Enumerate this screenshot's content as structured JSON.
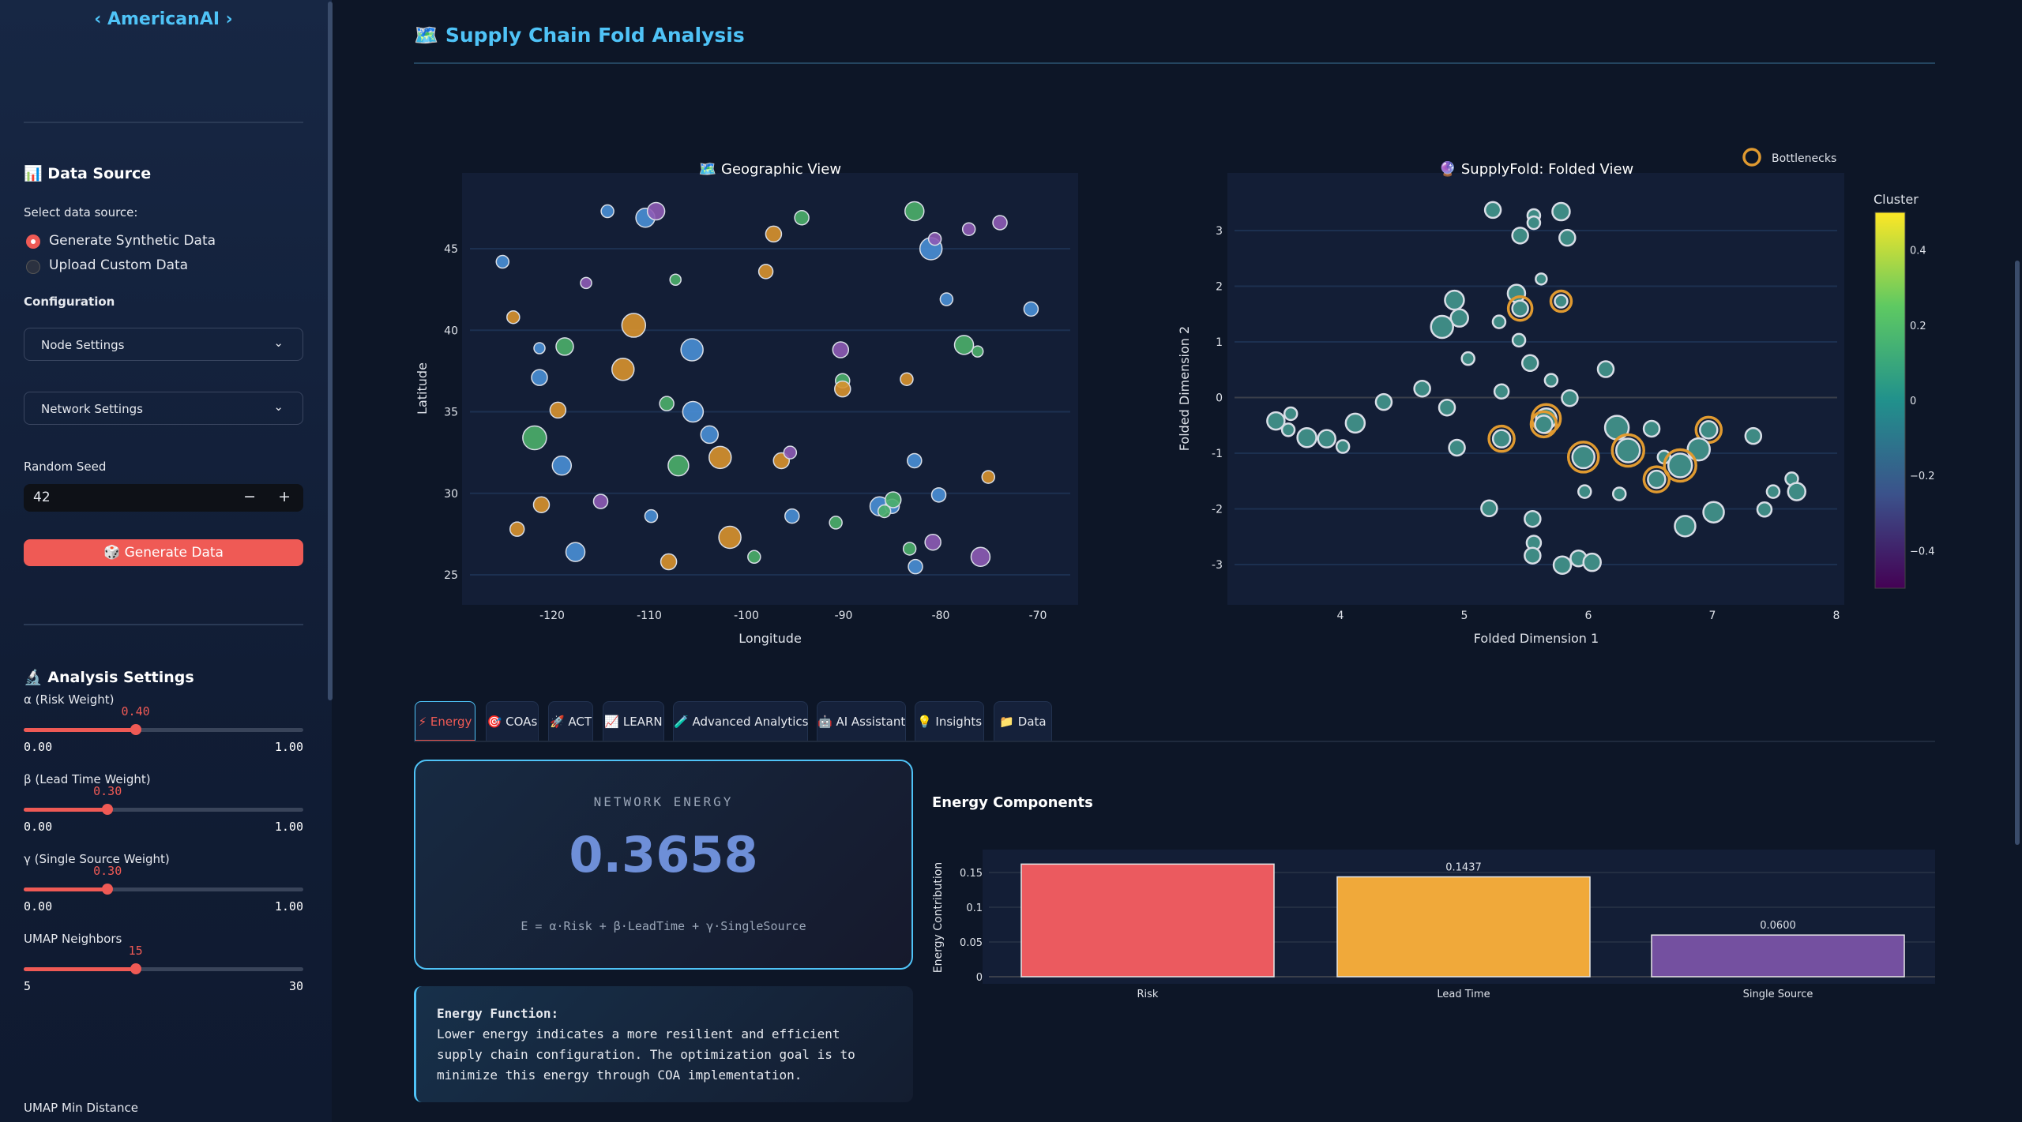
{
  "sidebar": {
    "logo": "‹ AmericanAI ›",
    "data_source": {
      "heading": "Data Source",
      "icon": "bar-chart-icon",
      "prompt": "Select data source:",
      "options": [
        {
          "label": "Generate Synthetic Data",
          "selected": true
        },
        {
          "label": "Upload Custom Data",
          "selected": false
        }
      ]
    },
    "configuration": {
      "heading": "Configuration",
      "expanders": [
        "Node Settings",
        "Network Settings"
      ]
    },
    "random_seed": {
      "label": "Random Seed",
      "value": "42",
      "minus": "−",
      "plus": "+"
    },
    "generate_button": "🎲 Generate Data",
    "analysis": {
      "heading": "Analysis Settings",
      "icon": "microscope-icon",
      "sliders": [
        {
          "label": "α (Risk Weight)",
          "value": "0.40",
          "fraction": 0.4,
          "min": "0.00",
          "max": "1.00"
        },
        {
          "label": "β (Lead Time Weight)",
          "value": "0.30",
          "fraction": 0.3,
          "min": "0.00",
          "max": "1.00"
        },
        {
          "label": "γ (Single Source Weight)",
          "value": "0.30",
          "fraction": 0.3,
          "min": "0.00",
          "max": "1.00"
        },
        {
          "label": "UMAP Neighbors",
          "value": "15",
          "fraction": 0.4,
          "min": "5",
          "max": "30"
        }
      ],
      "next_label": "UMAP Min Distance"
    }
  },
  "main": {
    "title": "🗺️ Supply Chain Fold Analysis",
    "tabs": [
      "⚡ Energy",
      "🎯 COAs",
      "🚀 ACT",
      "📈 LEARN",
      "🧪 Advanced Analytics",
      "🤖 AI Assistant",
      "💡 Insights",
      "📁 Data"
    ],
    "active_tab": 0,
    "energy_card": {
      "label": "NETWORK ENERGY",
      "value": "0.3658",
      "formula": "E = α·Risk + β·LeadTime + γ·SingleSource"
    },
    "energy_function": {
      "title": "Energy Function:",
      "text": [
        "Lower energy indicates a more resilient and efficient",
        "supply chain configuration. The optimization goal is to",
        "minimize this energy through COA implementation."
      ]
    }
  },
  "colors": {
    "blue": "#4a8fd6",
    "orange": "#d9922e",
    "green": "#4caf6a",
    "purple": "#8e5bb5",
    "teal": "#3e8a84",
    "bottleneck": "#e09a30",
    "accent": "#ef5a55",
    "cyan": "#4fc3f7"
  },
  "chart_data": [
    {
      "type": "scatter",
      "title": "🗺️ Geographic View",
      "xlabel": "Longitude",
      "ylabel": "Latitude",
      "xlim": [
        -128.5,
        -66
      ],
      "ylim": [
        23,
        50
      ],
      "xticks": [
        -120,
        -110,
        -100,
        -90,
        -80,
        -70
      ],
      "yticks": [
        25,
        30,
        35,
        40,
        45
      ],
      "points": [
        [
          -114.3,
          47.3,
          "blue",
          8
        ],
        [
          -110.4,
          46.9,
          "blue",
          12
        ],
        [
          -109.3,
          47.3,
          "purple",
          11
        ],
        [
          -94.3,
          46.9,
          "green",
          9
        ],
        [
          -97.2,
          45.9,
          "orange",
          10
        ],
        [
          -82.7,
          47.3,
          "green",
          12
        ],
        [
          -77.1,
          46.2,
          "purple",
          8
        ],
        [
          -73.9,
          46.6,
          "purple",
          9
        ],
        [
          -81.0,
          45.0,
          "blue",
          14
        ],
        [
          -80.6,
          45.6,
          "purple",
          8
        ],
        [
          -125.1,
          44.2,
          "blue",
          8
        ],
        [
          -98.0,
          43.6,
          "orange",
          9
        ],
        [
          -116.5,
          42.9,
          "purple",
          7
        ],
        [
          -107.3,
          43.1,
          "green",
          7
        ],
        [
          -79.4,
          41.9,
          "blue",
          8
        ],
        [
          -70.7,
          41.3,
          "blue",
          9
        ],
        [
          -124.0,
          40.8,
          "orange",
          8
        ],
        [
          -111.6,
          40.3,
          "orange",
          15
        ],
        [
          -121.3,
          38.9,
          "blue",
          7
        ],
        [
          -118.7,
          39.0,
          "green",
          11
        ],
        [
          -105.6,
          38.8,
          "blue",
          14
        ],
        [
          -90.3,
          38.8,
          "purple",
          10
        ],
        [
          -77.6,
          39.1,
          "green",
          12
        ],
        [
          -76.2,
          38.7,
          "green",
          7
        ],
        [
          -112.7,
          37.6,
          "orange",
          14
        ],
        [
          -121.3,
          37.1,
          "blue",
          10
        ],
        [
          -90.1,
          36.9,
          "green",
          9
        ],
        [
          -90.1,
          36.4,
          "orange",
          10
        ],
        [
          -83.5,
          37.0,
          "orange",
          8
        ],
        [
          -108.2,
          35.5,
          "green",
          9
        ],
        [
          -119.4,
          35.1,
          "orange",
          10
        ],
        [
          -105.5,
          35.0,
          "blue",
          13
        ],
        [
          -121.8,
          33.4,
          "green",
          15
        ],
        [
          -103.8,
          33.6,
          "blue",
          11
        ],
        [
          -96.4,
          32.0,
          "orange",
          10
        ],
        [
          -95.5,
          32.5,
          "purple",
          8
        ],
        [
          -102.7,
          32.2,
          "orange",
          14
        ],
        [
          -107.0,
          31.7,
          "green",
          13
        ],
        [
          -119.0,
          31.7,
          "blue",
          12
        ],
        [
          -82.7,
          32.0,
          "blue",
          9
        ],
        [
          -75.1,
          31.0,
          "orange",
          8
        ],
        [
          -80.2,
          29.9,
          "blue",
          9
        ],
        [
          -115.0,
          29.5,
          "purple",
          9
        ],
        [
          -121.1,
          29.3,
          "orange",
          10
        ],
        [
          -86.3,
          29.2,
          "blue",
          12
        ],
        [
          -85.0,
          29.2,
          "blue",
          9
        ],
        [
          -84.9,
          29.6,
          "green",
          10
        ],
        [
          -85.8,
          28.9,
          "green",
          8
        ],
        [
          -109.8,
          28.6,
          "blue",
          8
        ],
        [
          -95.3,
          28.6,
          "blue",
          9
        ],
        [
          -90.8,
          28.2,
          "green",
          8
        ],
        [
          -123.6,
          27.8,
          "orange",
          9
        ],
        [
          -101.7,
          27.3,
          "orange",
          14
        ],
        [
          -80.8,
          27.0,
          "purple",
          10
        ],
        [
          -117.6,
          26.4,
          "blue",
          12
        ],
        [
          -99.2,
          26.1,
          "green",
          8
        ],
        [
          -83.2,
          26.6,
          "green",
          8
        ],
        [
          -75.9,
          26.1,
          "purple",
          12
        ],
        [
          -108.0,
          25.8,
          "orange",
          10
        ],
        [
          -82.6,
          25.5,
          "blue",
          9
        ]
      ]
    },
    {
      "type": "scatter",
      "title": "🔮 SupplyFold: Folded View",
      "xlabel": "Folded Dimension 1",
      "ylabel": "Folded Dimension 2",
      "xlim": [
        3.1,
        8.1
      ],
      "ylim": [
        -3.8,
        3.8
      ],
      "xticks": [
        4,
        5,
        6,
        7,
        8
      ],
      "yticks": [
        -3,
        -2,
        -1,
        0,
        1,
        2,
        3
      ],
      "legend": {
        "label": "Bottlenecks",
        "position": "top-right"
      },
      "colorbar": {
        "title": "Cluster",
        "range": [
          -0.5,
          0.5
        ],
        "ticks": [
          0.4,
          0.2,
          0,
          -0.2,
          -0.4
        ],
        "tick_labels": [
          "0.4",
          "0.2",
          "0",
          "−0.2",
          "−0.4"
        ]
      },
      "points": [
        [
          5.23,
          3.37,
          10,
          0
        ],
        [
          5.56,
          3.27,
          8,
          0
        ],
        [
          5.56,
          3.14,
          8,
          0
        ],
        [
          5.78,
          3.34,
          11,
          0
        ],
        [
          5.45,
          2.91,
          10,
          0
        ],
        [
          5.83,
          2.87,
          10,
          0
        ],
        [
          5.62,
          2.13,
          7,
          0
        ],
        [
          5.42,
          1.87,
          11,
          0
        ],
        [
          5.45,
          1.6,
          10,
          1
        ],
        [
          5.78,
          1.73,
          8,
          1
        ],
        [
          4.92,
          1.75,
          12,
          0
        ],
        [
          4.96,
          1.43,
          11,
          0
        ],
        [
          4.82,
          1.27,
          14,
          0
        ],
        [
          5.28,
          1.36,
          8,
          0
        ],
        [
          5.44,
          1.03,
          8,
          0
        ],
        [
          5.03,
          0.7,
          8,
          0
        ],
        [
          5.53,
          0.62,
          10,
          0
        ],
        [
          6.14,
          0.51,
          10,
          0
        ],
        [
          5.7,
          0.31,
          8,
          0
        ],
        [
          4.66,
          0.16,
          10,
          0
        ],
        [
          5.3,
          0.11,
          9,
          0
        ],
        [
          5.85,
          -0.01,
          10,
          0
        ],
        [
          4.35,
          -0.08,
          10,
          0
        ],
        [
          4.86,
          -0.18,
          10,
          0
        ],
        [
          3.6,
          -0.29,
          8,
          0
        ],
        [
          3.48,
          -0.42,
          11,
          0
        ],
        [
          3.58,
          -0.58,
          8,
          0
        ],
        [
          3.73,
          -0.72,
          12,
          0
        ],
        [
          3.89,
          -0.74,
          11,
          0
        ],
        [
          4.02,
          -0.88,
          8,
          0
        ],
        [
          4.12,
          -0.46,
          12,
          0
        ],
        [
          4.94,
          -0.9,
          10,
          0
        ],
        [
          5.3,
          -0.74,
          11,
          1
        ],
        [
          5.66,
          -0.38,
          13,
          1
        ],
        [
          5.64,
          -0.48,
          11,
          1
        ],
        [
          6.23,
          -0.54,
          15,
          0
        ],
        [
          6.51,
          -0.56,
          10,
          0
        ],
        [
          6.97,
          -0.58,
          11,
          1
        ],
        [
          7.33,
          -0.69,
          10,
          0
        ],
        [
          5.96,
          -1.07,
          14,
          1
        ],
        [
          6.32,
          -0.95,
          15,
          1
        ],
        [
          6.61,
          -1.07,
          8,
          0
        ],
        [
          6.89,
          -0.93,
          14,
          0
        ],
        [
          6.74,
          -1.22,
          15,
          1
        ],
        [
          6.55,
          -1.47,
          11,
          1
        ],
        [
          5.97,
          -1.69,
          8,
          0
        ],
        [
          6.25,
          -1.73,
          8,
          0
        ],
        [
          7.64,
          -1.46,
          8,
          0
        ],
        [
          7.49,
          -1.69,
          8,
          0
        ],
        [
          7.68,
          -1.69,
          11,
          0
        ],
        [
          5.2,
          -1.99,
          10,
          0
        ],
        [
          5.55,
          -2.18,
          10,
          0
        ],
        [
          7.42,
          -2.01,
          9,
          0
        ],
        [
          7.01,
          -2.06,
          13,
          0
        ],
        [
          6.78,
          -2.31,
          13,
          0
        ],
        [
          5.56,
          -2.61,
          9,
          0
        ],
        [
          5.55,
          -2.84,
          10,
          0
        ],
        [
          5.79,
          -3.01,
          11,
          0
        ],
        [
          5.92,
          -2.89,
          10,
          0
        ],
        [
          6.03,
          -2.96,
          11,
          0
        ]
      ]
    },
    {
      "type": "bar",
      "title": "Energy Components",
      "xlabel": "",
      "ylabel": "Energy Contribution",
      "categories": [
        "Risk",
        "Lead Time",
        "Single Source"
      ],
      "values": [
        0.1621,
        0.1437,
        0.06
      ],
      "labels": [
        "",
        "0.1437",
        "0.0600"
      ],
      "bar_colors": [
        "#eb5a5f",
        "#f0a93a",
        "#7450a0"
      ],
      "ylim": [
        0,
        0.17
      ],
      "yticks": [
        0,
        0.05,
        0.1,
        0.15
      ],
      "ytick_labels": [
        "0",
        "0.05",
        "0.1",
        "0.15"
      ]
    }
  ]
}
